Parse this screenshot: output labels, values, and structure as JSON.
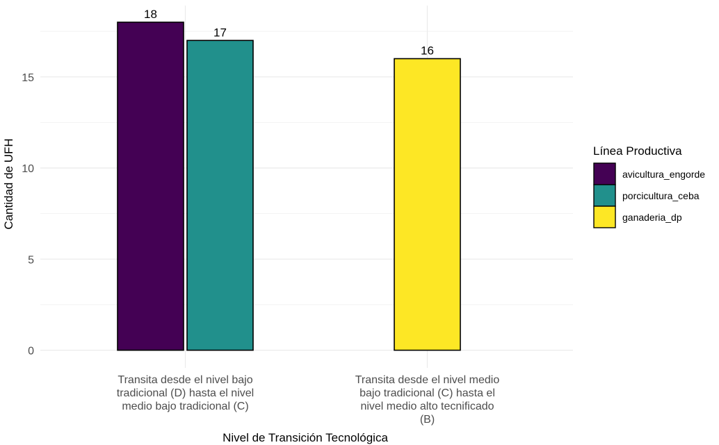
{
  "chart_data": {
    "type": "bar",
    "title": "",
    "xlabel": "Nivel de Transición Tecnológica",
    "ylabel": "Cantidad de UFH",
    "ylim": [
      0,
      18
    ],
    "yticks": [
      0,
      5,
      10,
      15
    ],
    "grid": true,
    "legend_position": "right",
    "legend_title": "Línea Productiva",
    "categories": [
      [
        "Transita desde el nivel bajo",
        "tradicional (D) hasta el nivel",
        "medio bajo tradicional (C)"
      ],
      [
        "Transita desde el nivel medio",
        "bajo tradicional (C) hasta el",
        "nivel medio alto tecnificado",
        "(B)"
      ]
    ],
    "series": [
      {
        "name": "avicultura_engorde",
        "color": "#440154",
        "values": [
          18,
          null
        ]
      },
      {
        "name": "porcicultura_ceba",
        "color": "#21908C",
        "values": [
          17,
          null
        ]
      },
      {
        "name": "ganaderia_dp",
        "color": "#FDE725",
        "values": [
          null,
          16
        ]
      }
    ]
  }
}
